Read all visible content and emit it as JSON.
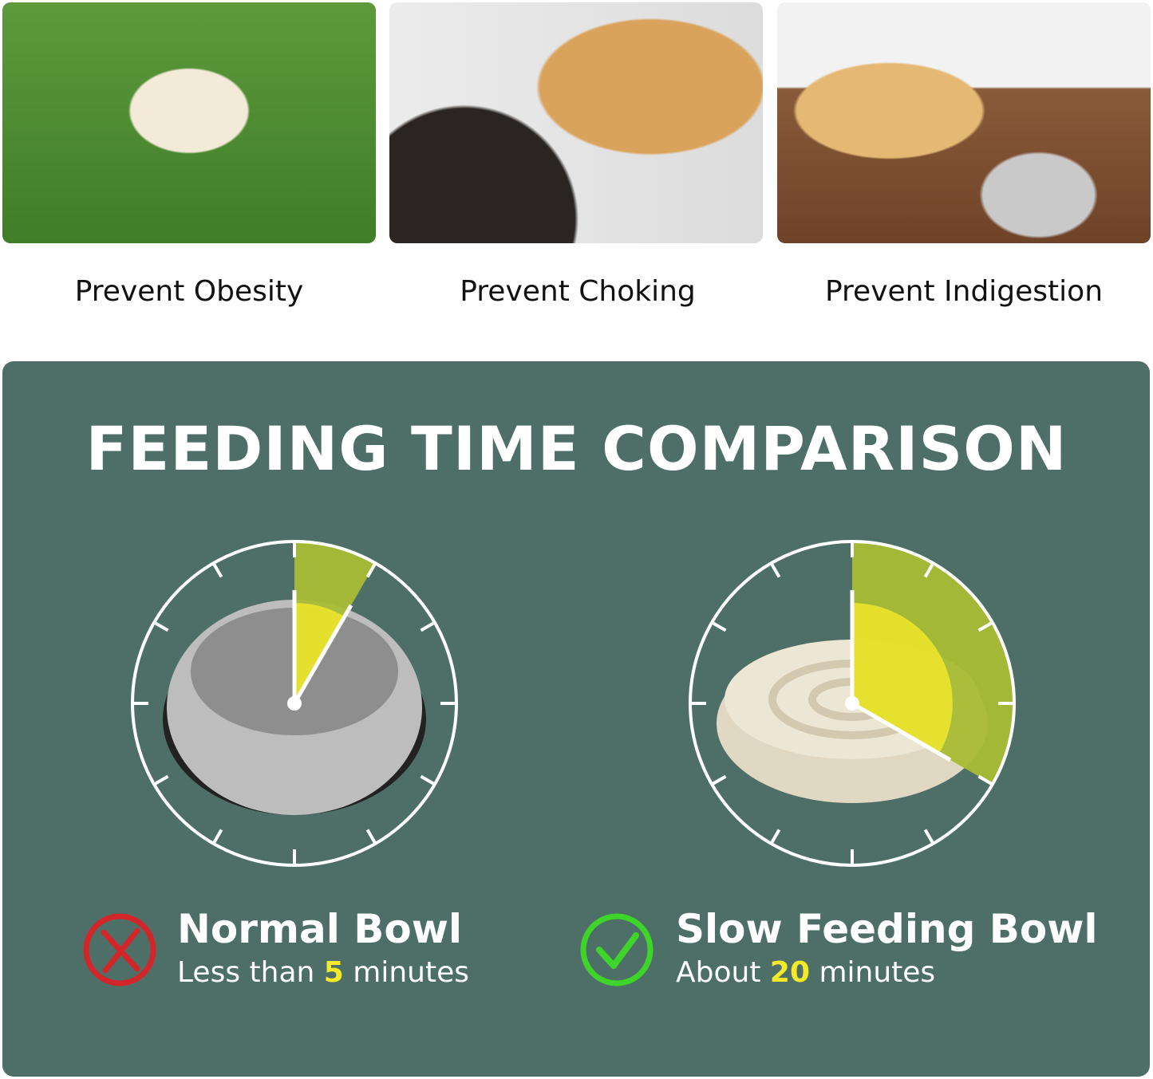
{
  "benefits": [
    {
      "label": "Prevent Obesity",
      "image": "overweight pug on grass"
    },
    {
      "label": "Prevent Choking",
      "image": "person checking golden retriever mouth"
    },
    {
      "label": "Prevent Indigestion",
      "image": "labrador lying next to steel bowl"
    }
  ],
  "comparison": {
    "title": "FEEDING TIME COMPARISON",
    "accent_color": "#a8bc34",
    "highlight_color": "#f5ea2a",
    "panel_color": "#4e6f67",
    "clock_total_minutes": 60,
    "items": [
      {
        "name": "Normal Bowl",
        "prefix": "Less than ",
        "value": "5",
        "suffix": " minutes",
        "minutes": 5,
        "icon": "x-circle-icon",
        "icon_color": "#d3262a",
        "bowl": "stainless steel bowl"
      },
      {
        "name": "Slow Feeding Bowl",
        "prefix": "About ",
        "value": "20",
        "suffix": " minutes",
        "minutes": 20,
        "icon": "check-circle-icon",
        "icon_color": "#3fd42a",
        "bowl": "cream maze slow feeder bowl"
      }
    ]
  }
}
